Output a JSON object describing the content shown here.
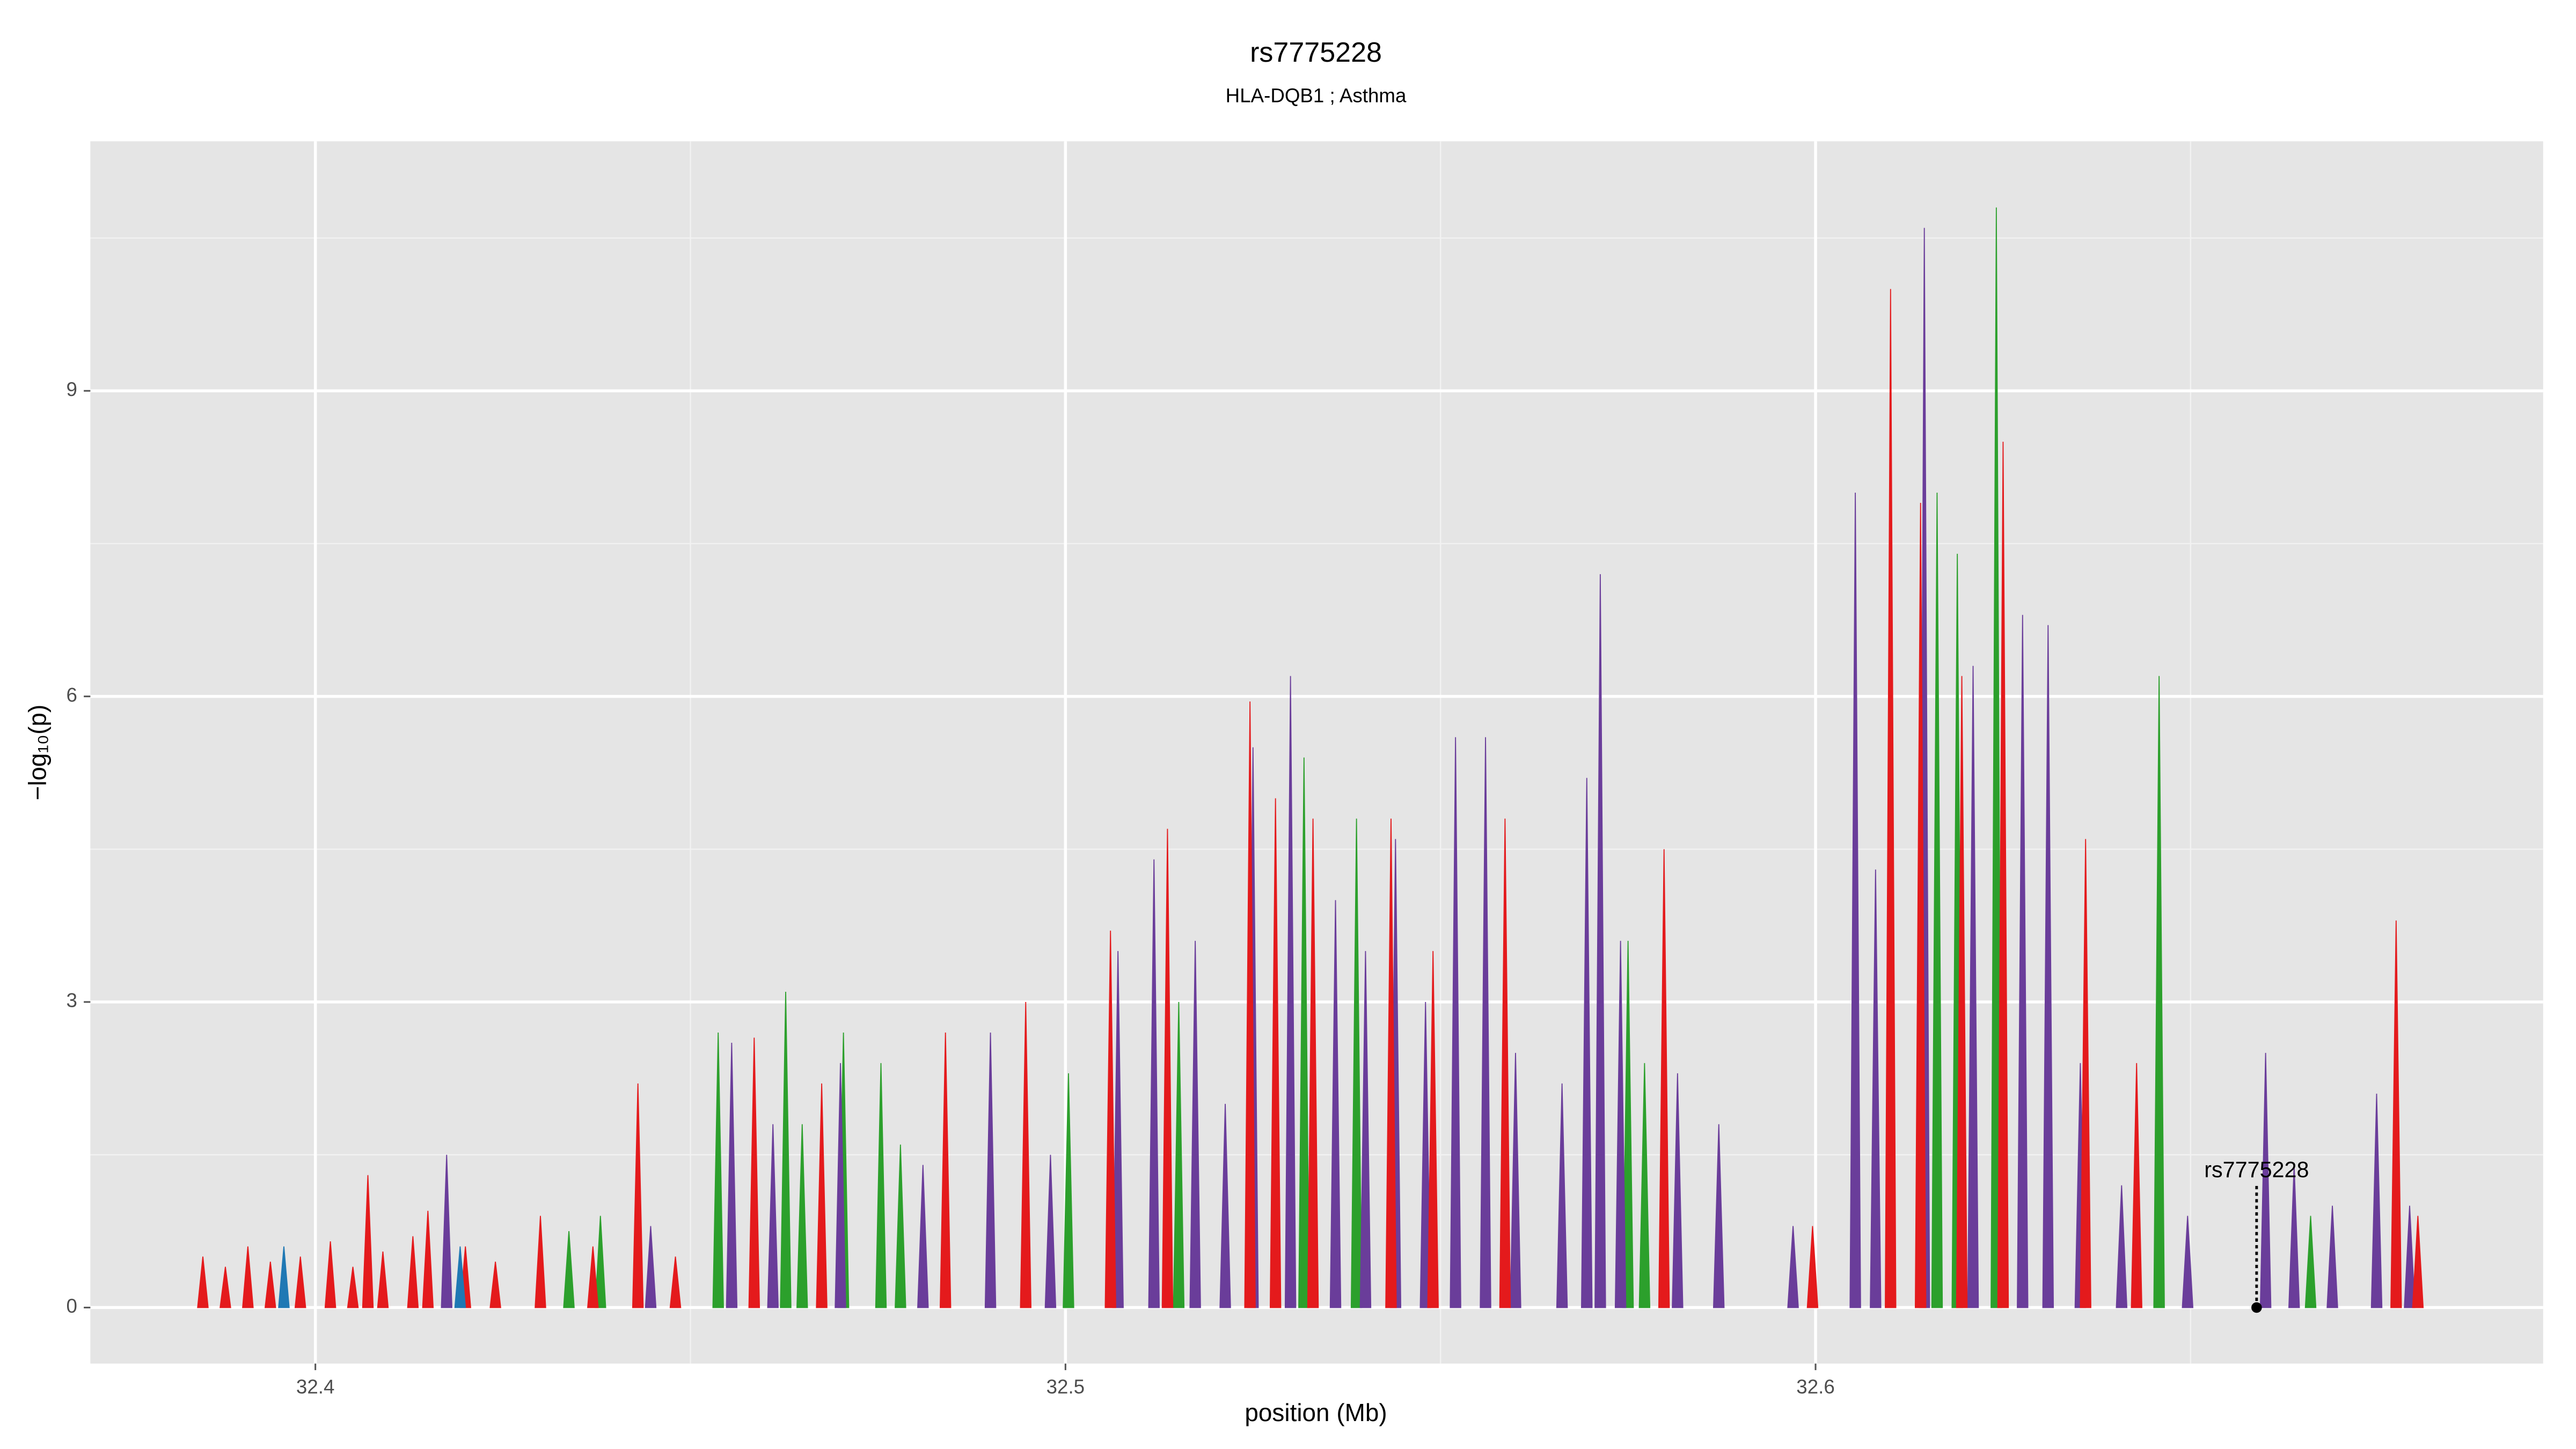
{
  "chart_data": {
    "type": "area",
    "title": "rs7775228",
    "subtitle": "HLA-DQB1 ; Asthma",
    "xlabel": "position (Mb)",
    "ylabel": "−log₁₀(p)",
    "xlim": [
      32.37,
      32.697
    ],
    "ylim": [
      -0.55,
      11.45
    ],
    "xticks": [
      32.4,
      32.5,
      32.6
    ],
    "yticks": [
      0,
      3,
      6,
      9
    ],
    "x_minor_grid": [
      32.45,
      32.55,
      32.65
    ],
    "y_minor_grid": [
      1.5,
      4.5,
      7.5,
      10.5
    ],
    "grid": true,
    "series": [
      {
        "color": "#2ca02c",
        "x": [
          32.4338,
          32.438,
          32.4537,
          32.4627,
          32.4649,
          32.4704,
          32.4754,
          32.478,
          32.5004,
          32.5151,
          32.5318,
          32.5388,
          32.575,
          32.5772,
          32.6162,
          32.6189,
          32.6241,
          32.6458,
          32.666
        ],
        "values": [
          0.75,
          0.9,
          2.7,
          3.1,
          1.8,
          2.7,
          2.4,
          1.6,
          2.3,
          3.0,
          5.4,
          4.8,
          3.6,
          2.4,
          8.0,
          7.4,
          10.8,
          6.2,
          0.9
        ]
      },
      {
        "color": "#6a3d9a",
        "x": [
          32.4175,
          32.4447,
          32.4555,
          32.461,
          32.47,
          32.481,
          32.49,
          32.498,
          32.507,
          32.5118,
          32.5173,
          32.5213,
          32.525,
          32.53,
          32.536,
          32.54,
          32.544,
          32.548,
          32.552,
          32.556,
          32.56,
          32.5662,
          32.5695,
          32.5713,
          32.574,
          32.5816,
          32.5871,
          32.597,
          32.6053,
          32.608,
          32.6145,
          32.621,
          32.6276,
          32.631,
          32.6353,
          32.6408,
          32.6496,
          32.66,
          32.6638,
          32.6689,
          32.6748,
          32.6792
        ],
        "values": [
          1.5,
          0.8,
          2.6,
          1.8,
          2.4,
          1.4,
          2.7,
          1.5,
          3.5,
          4.4,
          3.6,
          2.0,
          5.5,
          6.2,
          4.0,
          3.5,
          4.6,
          3.0,
          5.6,
          5.6,
          2.5,
          2.2,
          5.2,
          7.2,
          3.6,
          2.3,
          1.8,
          0.8,
          8.0,
          4.3,
          10.6,
          6.3,
          6.8,
          6.7,
          2.4,
          1.2,
          0.9,
          2.5,
          1.4,
          1.0,
          2.1,
          1.0
        ]
      },
      {
        "color": "#e41a1c",
        "x": [
          32.385,
          32.388,
          32.391,
          32.394,
          32.398,
          32.402,
          32.405,
          32.407,
          32.409,
          32.413,
          32.415,
          32.42,
          32.424,
          32.43,
          32.437,
          32.443,
          32.448,
          32.4585,
          32.4675,
          32.484,
          32.4947,
          32.506,
          32.5136,
          32.5246,
          32.528,
          32.533,
          32.5434,
          32.549,
          32.5586,
          32.5798,
          32.5996,
          32.61,
          32.614,
          32.6195,
          32.625,
          32.636,
          32.6428,
          32.6774,
          32.6803
        ],
        "values": [
          0.5,
          0.4,
          0.6,
          0.45,
          0.5,
          0.65,
          0.4,
          1.3,
          0.55,
          0.7,
          0.95,
          0.6,
          0.45,
          0.9,
          0.6,
          2.2,
          0.5,
          2.65,
          2.2,
          2.7,
          3.0,
          3.7,
          4.7,
          5.95,
          5.0,
          4.8,
          4.8,
          3.5,
          4.8,
          4.5,
          0.8,
          10.0,
          7.9,
          6.2,
          8.5,
          4.6,
          2.4,
          3.8,
          0.9
        ]
      },
      {
        "color": "#1f78b4",
        "x": [
          32.3958,
          32.4193
        ],
        "values": [
          0.6,
          0.6
        ]
      }
    ],
    "highlight": {
      "label": "rs7775228",
      "x": 32.6588,
      "y": 0
    }
  }
}
